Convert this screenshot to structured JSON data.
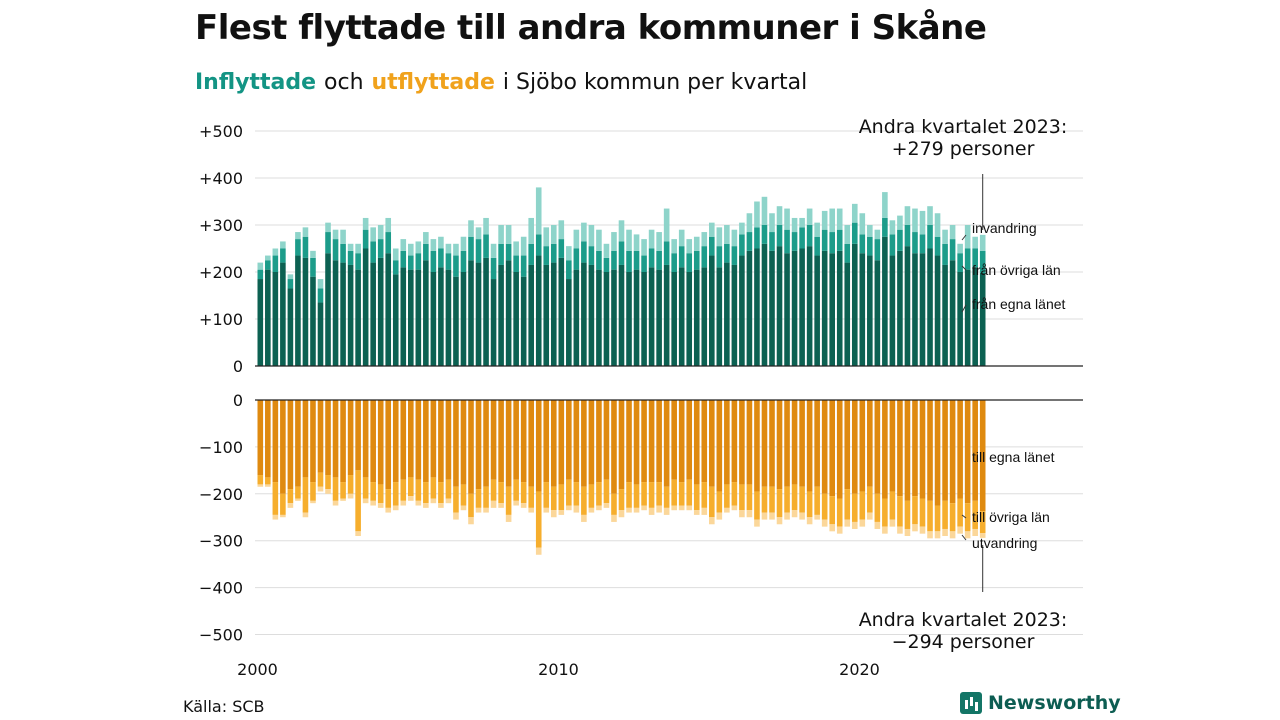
{
  "title": "Flest flyttade till andra kommuner i Skåne",
  "subtitle": {
    "in_word": "Inflyttade",
    "and_word": "och",
    "out_word": "utflyttade",
    "rest": "i Sjöbo  kommun  per  kvartal"
  },
  "source": "Källa: SCB",
  "brand": "Newsworthy",
  "colors": {
    "in_egna": "#0c6152",
    "in_ovriga": "#1c9c8a",
    "in_invandring": "#8ed4ca",
    "out_egna": "#df8a10",
    "out_ovriga": "#f6ae2d",
    "out_utvandring": "#fbd79a"
  },
  "chart_data": {
    "type": "bar",
    "title": "Flest flyttade till andra kommuner i Skåne",
    "x_start": 2000,
    "x_step": 0.25,
    "x_ticks": [
      "2000",
      "2010",
      "2020"
    ],
    "y_ticks_in": [
      "+500",
      "+400",
      "+300",
      "+200",
      "+100",
      "0"
    ],
    "y_ticks_out": [
      "0",
      "−100",
      "−200",
      "−300",
      "−400",
      "−500"
    ],
    "ylim_in": [
      0,
      500
    ],
    "ylim_out": [
      -500,
      0
    ],
    "in_series": [
      {
        "name": "från egna länet",
        "values": [
          185,
          205,
          200,
          220,
          165,
          235,
          230,
          190,
          135,
          240,
          225,
          220,
          215,
          205,
          250,
          220,
          230,
          240,
          195,
          210,
          205,
          205,
          225,
          200,
          210,
          205,
          190,
          200,
          225,
          220,
          230,
          185,
          215,
          225,
          200,
          190,
          215,
          235,
          215,
          220,
          230,
          185,
          205,
          220,
          215,
          205,
          200,
          205,
          215,
          200,
          205,
          200,
          210,
          205,
          215,
          200,
          210,
          200,
          205,
          210,
          235,
          210,
          220,
          215,
          235,
          245,
          250,
          260,
          245,
          255,
          240,
          245,
          250,
          255,
          235,
          245,
          240,
          245,
          220,
          260,
          240,
          235,
          225,
          275,
          235,
          245,
          255,
          240,
          240,
          250,
          235,
          215,
          225,
          200,
          205,
          210,
          198
        ]
      },
      {
        "name": "från övriga län",
        "values": [
          20,
          20,
          35,
          30,
          20,
          35,
          45,
          40,
          30,
          45,
          45,
          40,
          30,
          35,
          40,
          45,
          40,
          45,
          30,
          35,
          30,
          35,
          35,
          45,
          40,
          35,
          45,
          45,
          50,
          50,
          50,
          45,
          45,
          35,
          35,
          45,
          45,
          45,
          40,
          40,
          40,
          40,
          45,
          45,
          40,
          40,
          30,
          40,
          50,
          45,
          40,
          35,
          40,
          40,
          50,
          40,
          45,
          40,
          40,
          45,
          40,
          45,
          40,
          40,
          45,
          40,
          45,
          40,
          40,
          45,
          50,
          40,
          45,
          45,
          40,
          45,
          45,
          45,
          40,
          45,
          40,
          40,
          45,
          40,
          45,
          45,
          45,
          45,
          40,
          50,
          40,
          45,
          45,
          40,
          45,
          40,
          47
        ]
      },
      {
        "name": "invandring",
        "values": [
          15,
          10,
          15,
          15,
          10,
          15,
          20,
          15,
          20,
          20,
          20,
          30,
          15,
          20,
          25,
          30,
          30,
          30,
          25,
          25,
          25,
          25,
          25,
          25,
          25,
          20,
          25,
          30,
          35,
          25,
          35,
          30,
          40,
          40,
          30,
          40,
          55,
          100,
          40,
          40,
          40,
          30,
          40,
          40,
          45,
          45,
          30,
          40,
          45,
          45,
          35,
          35,
          40,
          40,
          70,
          30,
          35,
          30,
          30,
          30,
          30,
          40,
          40,
          35,
          25,
          40,
          55,
          60,
          40,
          40,
          45,
          30,
          20,
          35,
          30,
          40,
          50,
          45,
          40,
          40,
          45,
          25,
          20,
          55,
          30,
          30,
          40,
          50,
          50,
          40,
          50,
          30,
          30,
          20,
          50,
          25,
          34
        ]
      }
    ],
    "out_series": [
      {
        "name": "till egna länet",
        "values": [
          160,
          165,
          175,
          200,
          190,
          185,
          165,
          175,
          155,
          160,
          165,
          175,
          160,
          150,
          165,
          175,
          180,
          190,
          175,
          170,
          165,
          170,
          175,
          165,
          175,
          170,
          185,
          180,
          200,
          190,
          185,
          170,
          175,
          185,
          170,
          175,
          185,
          195,
          175,
          185,
          180,
          170,
          175,
          185,
          180,
          175,
          170,
          200,
          190,
          175,
          180,
          175,
          175,
          175,
          185,
          170,
          175,
          170,
          180,
          175,
          185,
          195,
          180,
          175,
          180,
          180,
          195,
          185,
          185,
          190,
          185,
          180,
          185,
          195,
          185,
          200,
          205,
          210,
          190,
          200,
          195,
          185,
          200,
          210,
          195,
          205,
          215,
          205,
          210,
          215,
          225,
          215,
          220,
          210,
          220,
          215,
          237
        ]
      },
      {
        "name": "till övriga län",
        "values": [
          20,
          15,
          70,
          45,
          30,
          25,
          75,
          40,
          30,
          30,
          50,
          35,
          40,
          130,
          45,
          40,
          40,
          40,
          50,
          45,
          40,
          45,
          45,
          45,
          45,
          40,
          55,
          45,
          50,
          40,
          45,
          45,
          45,
          60,
          45,
          45,
          45,
          120,
          55,
          50,
          55,
          55,
          50,
          60,
          50,
          50,
          50,
          45,
          45,
          55,
          50,
          50,
          55,
          50,
          45,
          55,
          50,
          55,
          55,
          55,
          65,
          45,
          50,
          50,
          55,
          55,
          60,
          55,
          55,
          60,
          55,
          55,
          55,
          55,
          60,
          55,
          60,
          60,
          65,
          60,
          60,
          55,
          60,
          60,
          60,
          65,
          60,
          60,
          60,
          65,
          55,
          60,
          60,
          60,
          60,
          60,
          47
        ]
      },
      {
        "name": "utvandring",
        "values": [
          5,
          5,
          10,
          5,
          10,
          5,
          10,
          5,
          10,
          10,
          10,
          5,
          10,
          10,
          10,
          10,
          10,
          10,
          10,
          10,
          10,
          10,
          10,
          10,
          10,
          10,
          15,
          10,
          15,
          10,
          10,
          15,
          10,
          15,
          10,
          10,
          10,
          15,
          10,
          15,
          10,
          10,
          15,
          15,
          10,
          10,
          10,
          15,
          15,
          10,
          10,
          10,
          15,
          15,
          15,
          10,
          10,
          10,
          10,
          15,
          15,
          15,
          10,
          10,
          15,
          15,
          15,
          15,
          15,
          15,
          15,
          15,
          15,
          15,
          10,
          15,
          15,
          15,
          15,
          15,
          15,
          15,
          15,
          15,
          15,
          15,
          15,
          15,
          15,
          15,
          15,
          15,
          15,
          15,
          15,
          15,
          10
        ]
      }
    ],
    "annotations": {
      "top_line1": "Andra kvartalet 2023:",
      "top_line2": "+279 personer",
      "bottom_line1": "Andra kvartalet 2023:",
      "bottom_line2": "−294 personer",
      "in_labels": [
        "invandring",
        "från övriga län",
        "från egna länet"
      ],
      "out_labels": [
        "till egna länet",
        "till övriga län",
        "utvandring"
      ]
    }
  }
}
